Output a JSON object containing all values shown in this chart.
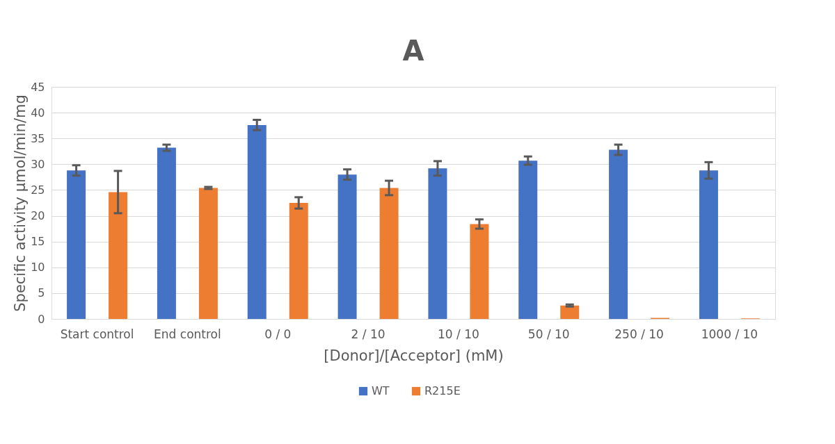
{
  "chart_data": {
    "type": "bar",
    "title": "A",
    "xlabel": "[Donor]/[Acceptor] (mM)",
    "ylabel": "Specific activity µmol/min/mg",
    "categories": [
      "Start control",
      "End control",
      "0 / 0",
      "2 / 10",
      "10 / 10",
      "50 / 10",
      "250 / 10",
      "1000 / 10"
    ],
    "series": [
      {
        "name": "WT",
        "color": "#4472c4",
        "values": [
          28.8,
          33.2,
          37.6,
          28.0,
          29.2,
          30.7,
          32.8,
          28.8
        ],
        "errors": [
          1.0,
          0.6,
          1.0,
          1.0,
          1.4,
          0.8,
          1.0,
          1.6
        ]
      },
      {
        "name": "R215E",
        "color": "#ed7d31",
        "values": [
          24.6,
          25.4,
          22.5,
          25.4,
          18.4,
          2.6,
          0.2,
          0.1
        ],
        "errors": [
          4.1,
          0.2,
          1.1,
          1.4,
          0.9,
          0.2,
          null,
          null
        ]
      }
    ],
    "ylim": [
      0,
      45
    ],
    "yticks": [
      0,
      5,
      10,
      15,
      20,
      25,
      30,
      35,
      40,
      45
    ],
    "grid": "y",
    "legend": "bottom"
  }
}
